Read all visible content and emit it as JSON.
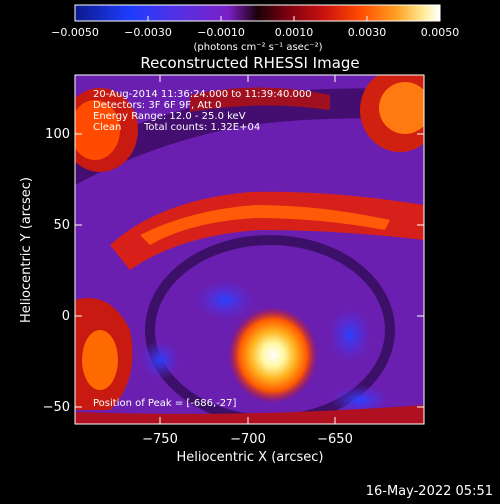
{
  "colorbar": {
    "tick_labels": [
      "−0.0050",
      "−0.0030",
      "−0.0010",
      "0.0010",
      "0.0030",
      "0.0050"
    ],
    "units": "(photons cm⁻² s⁻¹ asec⁻²)",
    "range": [
      -0.005,
      0.005
    ],
    "colors": [
      "#0b1a8a",
      "#1e3cff",
      "#5a2fe0",
      "#7b1fc6",
      "#2a0010",
      "#7a0010",
      "#c81010",
      "#ff4a00",
      "#ffa020",
      "#fff0a0",
      "#ffffff"
    ]
  },
  "title": "Reconstructed RHESSI Image",
  "info": {
    "line1": "20-Aug-2014 11:36:24.000 to 11:39:40.000",
    "line2": "Detectors: 3F 6F 9F, Att 0",
    "line3": "Energy Range: 12.0 - 25.0 keV",
    "line4_label": "Clean",
    "line4_counts": "Total counts: 1.32E+04"
  },
  "peak_text": "Position of Peak = [-686,-27]",
  "x_axis": {
    "label": "Heliocentric X (arcsec)",
    "ticks": [
      "−750",
      "−700",
      "−650"
    ]
  },
  "y_axis": {
    "label": "Heliocentric Y (arcsec)",
    "ticks": [
      "100",
      "50",
      "0",
      "−50"
    ]
  },
  "footer_date": "16-May-2022 05:51",
  "image_features": {
    "peak_position": [
      -686,
      -27
    ],
    "bright_source": "yellow-white",
    "background": "purple"
  }
}
